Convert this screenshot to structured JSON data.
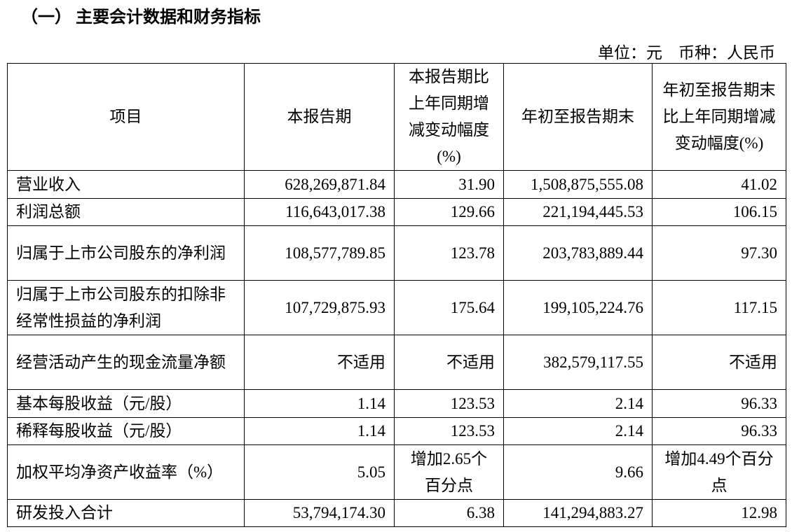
{
  "title": "（一） 主要会计数据和财务指标",
  "unit": "单位：元　币种：人民币",
  "table": {
    "header": [
      "项目",
      "本报告期",
      "本报告期比上年同期增减变动幅度(%)",
      "年初至报告期末",
      "年初至报告期末比上年同期增减变动幅度(%)"
    ],
    "rows": [
      [
        "营业收入",
        "628,269,871.84",
        "31.90",
        "1,508,875,555.08",
        "41.02"
      ],
      [
        "利润总额",
        "116,643,017.38",
        "129.66",
        "221,194,445.53",
        "106.15"
      ],
      [
        "归属于上市公司股东的净利润",
        "108,577,789.85",
        "123.78",
        "203,783,889.44",
        "97.30"
      ],
      [
        "归属于上市公司股东的扣除非经常性损益的净利润",
        "107,729,875.93",
        "175.64",
        "199,105,224.76",
        "117.15"
      ],
      [
        "经营活动产生的现金流量净额",
        "不适用",
        "不适用",
        "382,579,117.55",
        "不适用"
      ],
      [
        "基本每股收益（元/股）",
        "1.14",
        "123.53",
        "2.14",
        "96.33"
      ],
      [
        "稀释每股收益（元/股）",
        "1.14",
        "123.53",
        "2.14",
        "96.33"
      ],
      [
        "加权平均净资产收益率（%）",
        "5.05",
        "增加2.65个百分点",
        "9.66",
        "增加4.49个百分点"
      ],
      [
        "研发投入合计",
        "53,794,174.30",
        "6.38",
        "141,294,883.27",
        "12.98"
      ]
    ]
  }
}
